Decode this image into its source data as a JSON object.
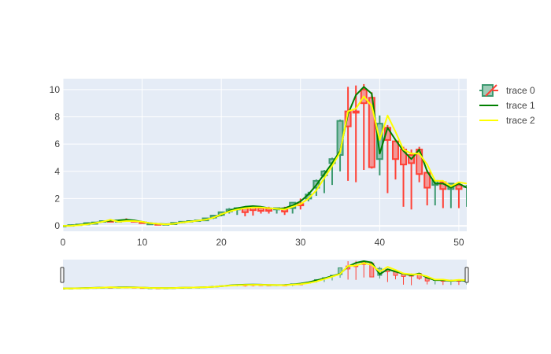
{
  "chart_data": {
    "type": "candlestick",
    "x": [
      0,
      1,
      2,
      3,
      4,
      5,
      6,
      7,
      8,
      9,
      10,
      11,
      12,
      13,
      14,
      15,
      16,
      17,
      18,
      19,
      20,
      21,
      22,
      23,
      24,
      25,
      26,
      27,
      28,
      29,
      30,
      31,
      32,
      33,
      34,
      35,
      36,
      37,
      38,
      39,
      40,
      41,
      42,
      43,
      44,
      45,
      46,
      47,
      48,
      49,
      50,
      51
    ],
    "xlim": [
      0,
      51
    ],
    "ylim": [
      -0.4,
      10.8
    ],
    "x_ticks": [
      0,
      10,
      20,
      30,
      40,
      50
    ],
    "y_ticks": [
      0,
      2,
      4,
      6,
      8,
      10
    ],
    "grid": true,
    "legend_position": "right",
    "range_slider": true,
    "colors": {
      "increasing": "#3D9970",
      "increasing_fill": "rgba(61,153,112,0.5)",
      "decreasing": "#FF4136",
      "decreasing_fill": "rgba(255,65,54,0.5)",
      "trace1": "#008000",
      "trace2": "#FFFF00",
      "plot_bg": "#E5ECF6",
      "grid": "#FFFFFF"
    },
    "candles": {
      "name": "trace 0",
      "open": [
        0.0,
        0.0,
        0.05,
        0.1,
        0.15,
        0.3,
        0.35,
        0.3,
        0.4,
        0.35,
        0.25,
        0.15,
        0.12,
        0.1,
        0.12,
        0.25,
        0.3,
        0.35,
        0.4,
        0.6,
        0.8,
        1.05,
        1.2,
        1.3,
        1.35,
        1.3,
        1.25,
        1.2,
        1.2,
        1.3,
        1.6,
        2.0,
        2.8,
        3.7,
        4.6,
        5.2,
        8.4,
        8.4,
        10.0,
        9.4,
        4.9,
        7.2,
        6.2,
        5.6,
        5.2,
        5.6,
        3.9,
        3.0,
        3.2,
        2.7,
        3.0,
        2.9
      ],
      "high": [
        0.05,
        0.05,
        0.1,
        0.2,
        0.25,
        0.4,
        0.5,
        0.45,
        0.55,
        0.45,
        0.35,
        0.25,
        0.2,
        0.15,
        0.2,
        0.35,
        0.4,
        0.45,
        0.55,
        0.8,
        1.0,
        1.3,
        1.35,
        1.45,
        1.45,
        1.45,
        1.4,
        1.3,
        1.4,
        1.7,
        2.0,
        2.5,
        3.4,
        4.1,
        5.0,
        7.8,
        10.2,
        10.3,
        10.4,
        9.8,
        8.1,
        7.4,
        6.3,
        5.8,
        5.6,
        5.8,
        4.1,
        3.2,
        3.3,
        3.1,
        3.1,
        3.0
      ],
      "low": [
        -0.05,
        -0.05,
        0.0,
        0.05,
        0.1,
        0.25,
        0.3,
        0.25,
        0.35,
        0.3,
        0.2,
        0.1,
        0.08,
        0.05,
        0.08,
        0.2,
        0.25,
        0.3,
        0.35,
        0.5,
        0.7,
        0.9,
        0.8,
        0.7,
        0.75,
        0.9,
        0.9,
        0.9,
        0.8,
        0.9,
        1.2,
        1.8,
        2.2,
        2.4,
        3.0,
        4.0,
        3.3,
        3.2,
        4.1,
        4.2,
        3.7,
        2.4,
        3.4,
        1.4,
        1.2,
        3.2,
        1.5,
        1.5,
        1.3,
        1.3,
        1.3,
        1.4
      ],
      "close": [
        0.0,
        0.05,
        0.1,
        0.2,
        0.25,
        0.35,
        0.3,
        0.35,
        0.35,
        0.3,
        0.2,
        0.15,
        0.1,
        0.12,
        0.22,
        0.3,
        0.35,
        0.4,
        0.55,
        0.75,
        1.0,
        1.2,
        1.3,
        1.0,
        1.15,
        1.1,
        1.1,
        1.3,
        1.05,
        1.7,
        1.5,
        2.3,
        3.3,
        4.0,
        4.9,
        7.7,
        7.3,
        8.3,
        9.0,
        4.3,
        7.5,
        6.3,
        4.9,
        4.5,
        4.6,
        3.8,
        2.8,
        3.3,
        2.7,
        3.1,
        2.7,
        2.9
      ]
    },
    "series": [
      {
        "name": "trace 1",
        "values": [
          0.0,
          0.02,
          0.07,
          0.15,
          0.22,
          0.3,
          0.38,
          0.4,
          0.45,
          0.4,
          0.3,
          0.2,
          0.15,
          0.12,
          0.15,
          0.25,
          0.32,
          0.38,
          0.45,
          0.6,
          0.8,
          1.1,
          1.3,
          1.4,
          1.45,
          1.4,
          1.3,
          1.25,
          1.3,
          1.5,
          1.8,
          2.3,
          3.0,
          3.8,
          4.6,
          5.5,
          8.2,
          9.6,
          10.2,
          9.7,
          5.3,
          7.2,
          6.3,
          5.5,
          4.9,
          5.6,
          4.0,
          3.1,
          3.1,
          2.8,
          3.1,
          2.8
        ]
      },
      {
        "name": "trace 2",
        "values": [
          0.0,
          0.0,
          0.05,
          0.1,
          0.2,
          0.3,
          0.45,
          0.3,
          0.35,
          0.35,
          0.3,
          0.2,
          0.15,
          0.1,
          0.15,
          0.25,
          0.3,
          0.38,
          0.45,
          0.6,
          0.85,
          1.05,
          1.2,
          1.3,
          1.35,
          1.35,
          1.3,
          1.25,
          1.2,
          1.4,
          1.6,
          2.0,
          2.6,
          3.5,
          4.4,
          5.4,
          8.4,
          8.6,
          9.5,
          8.8,
          6.3,
          8.1,
          6.9,
          5.6,
          5.3,
          5.3,
          4.5,
          3.3,
          3.3,
          2.9,
          3.2,
          3.1
        ]
      }
    ]
  }
}
